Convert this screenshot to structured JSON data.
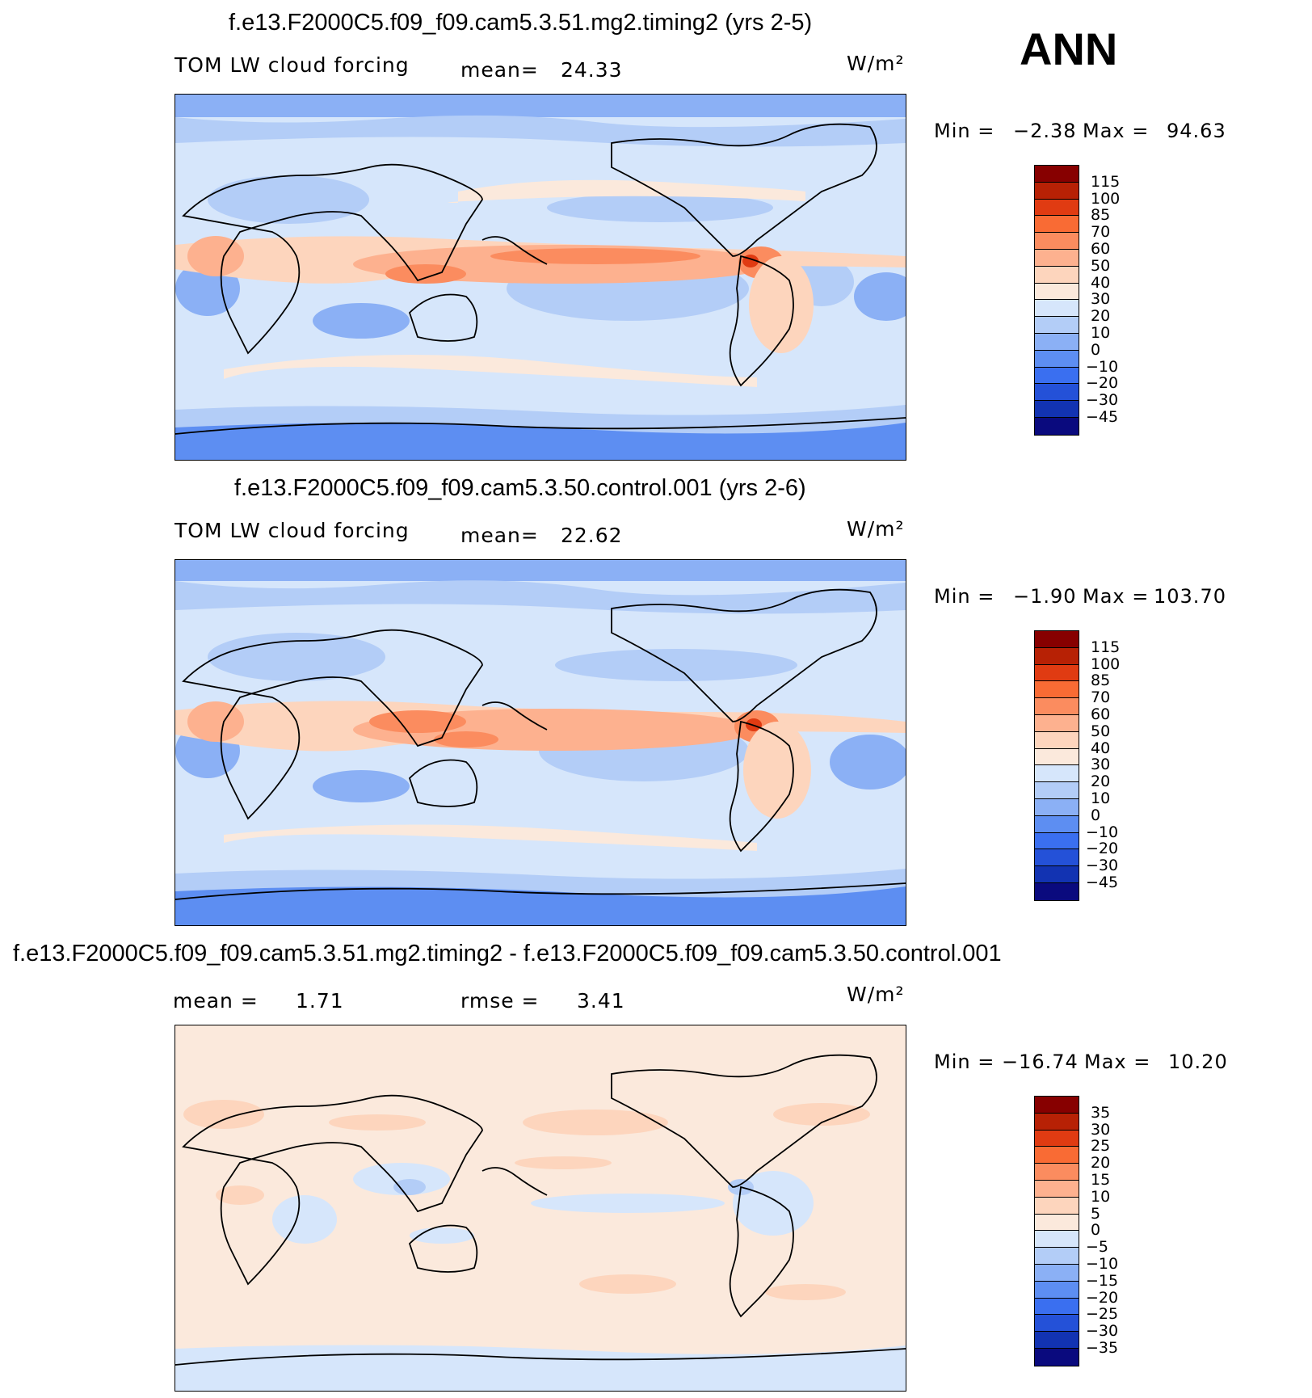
{
  "season": "ANN",
  "panels": [
    {
      "title": "f.e13.F2000C5.f09_f09.cam5.3.51.mg2.timing2 (yrs 2-5)",
      "variable": "TOM LW cloud forcing",
      "mean_label": "mean=",
      "mean_value": "24.33",
      "units": "W/m²",
      "min_label": "Min =",
      "min_value": "−2.38",
      "max_label": "Max =",
      "max_value": "94.63",
      "colorbar_labels": [
        "115",
        "100",
        "85",
        "70",
        "60",
        "50",
        "40",
        "30",
        "20",
        "10",
        "0",
        "−10",
        "−20",
        "−30",
        "−45"
      ],
      "colorbar_colors": [
        "#870000",
        "#b72105",
        "#e03b12",
        "#f96b34",
        "#fb8c5f",
        "#fdb18f",
        "#fdd5bd",
        "#fbe9dc",
        "#d6e6fb",
        "#b3cdf7",
        "#8bb0f5",
        "#5d8ef2",
        "#3a6ff0",
        "#2451d8",
        "#1233b2",
        "#0a0a7e"
      ]
    },
    {
      "title": "f.e13.F2000C5.f09_f09.cam5.3.50.control.001 (yrs 2-6)",
      "variable": "TOM LW cloud forcing",
      "mean_label": "mean=",
      "mean_value": "22.62",
      "units": "W/m²",
      "min_label": "Min =",
      "min_value": "−1.90",
      "max_label": "Max =",
      "max_value": "103.70",
      "colorbar_labels": [
        "115",
        "100",
        "85",
        "70",
        "60",
        "50",
        "40",
        "30",
        "20",
        "10",
        "0",
        "−10",
        "−20",
        "−30",
        "−45"
      ],
      "colorbar_colors": [
        "#870000",
        "#b72105",
        "#e03b12",
        "#f96b34",
        "#fb8c5f",
        "#fdb18f",
        "#fdd5bd",
        "#fbe9dc",
        "#d6e6fb",
        "#b3cdf7",
        "#8bb0f5",
        "#5d8ef2",
        "#3a6ff0",
        "#2451d8",
        "#1233b2",
        "#0a0a7e"
      ]
    },
    {
      "title": "f.e13.F2000C5.f09_f09.cam5.3.51.mg2.timing2 - f.e13.F2000C5.f09_f09.cam5.3.50.control.001",
      "mean_label": "mean =",
      "mean_value": "1.71",
      "rmse_label": "rmse =",
      "rmse_value": "3.41",
      "units": "W/m²",
      "min_label": "Min =",
      "min_value": "−16.74",
      "max_label": "Max =",
      "max_value": "10.20",
      "colorbar_labels": [
        "35",
        "30",
        "25",
        "20",
        "15",
        "10",
        "5",
        "0",
        "−5",
        "−10",
        "−15",
        "−20",
        "−25",
        "−30",
        "−35"
      ],
      "colorbar_colors": [
        "#870000",
        "#b72105",
        "#e03b12",
        "#f96b34",
        "#fb8c5f",
        "#fdb18f",
        "#fdd5bd",
        "#fbe9dc",
        "#d6e6fb",
        "#b3cdf7",
        "#8bb0f5",
        "#5d8ef2",
        "#3a6ff0",
        "#2451d8",
        "#1233b2",
        "#0a0a7e"
      ]
    }
  ]
}
